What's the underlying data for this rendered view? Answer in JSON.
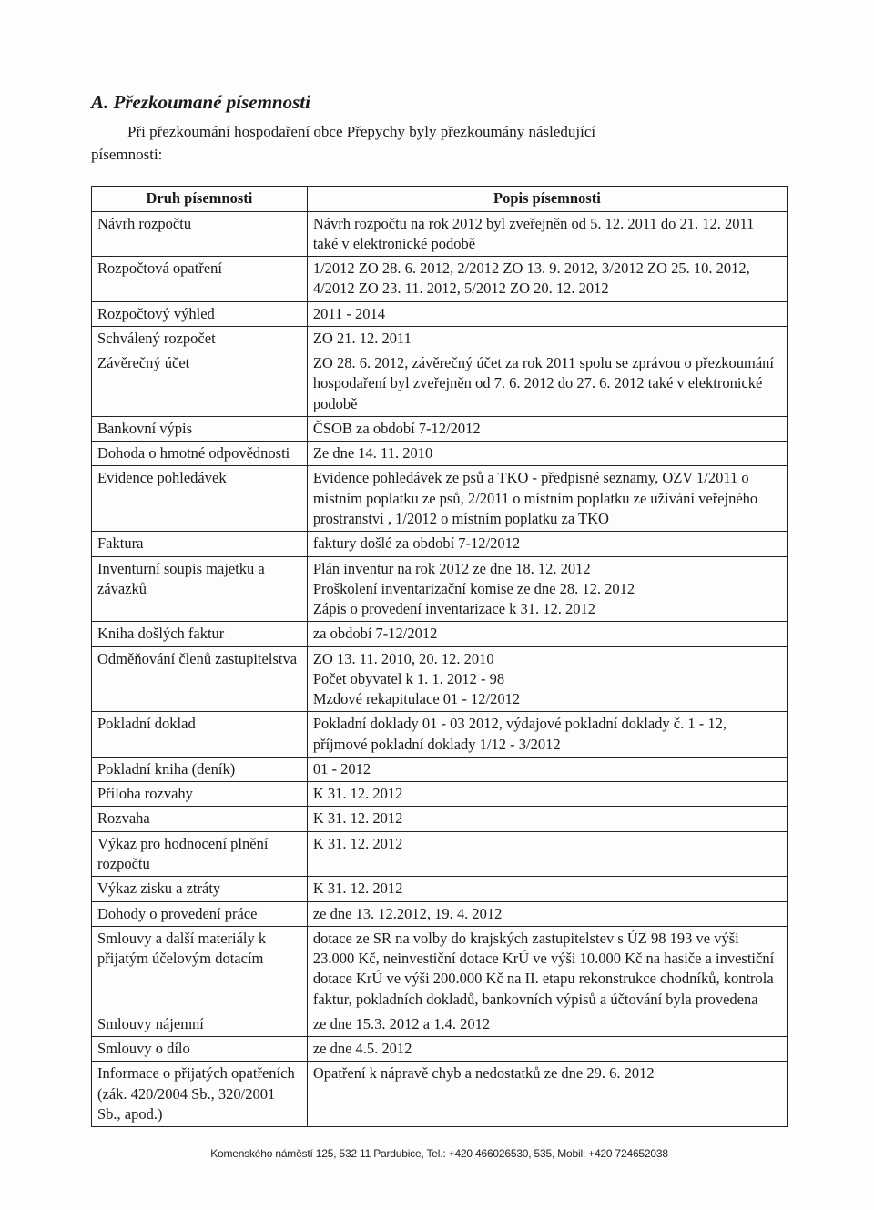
{
  "heading": "A. Přezkoumané písemnosti",
  "intro_line1": "Při přezkoumání hospodaření obce Přepychy byly přezkoumány následující",
  "intro_line2": "písemnosti:",
  "table": {
    "header_col1": "Druh písemnosti",
    "header_col2": "Popis písemnosti",
    "rows": [
      {
        "c1": "Návrh rozpočtu",
        "c2": "Návrh rozpočtu na rok 2012 byl zveřejněn od 5. 12. 2011 do 21. 12. 2011 také v elektronické podobě"
      },
      {
        "c1": "Rozpočtová opatření",
        "c2": "1/2012 ZO 28. 6. 2012, 2/2012 ZO 13. 9. 2012, 3/2012 ZO 25. 10. 2012, 4/2012 ZO 23. 11. 2012, 5/2012 ZO 20. 12. 2012"
      },
      {
        "c1": "Rozpočtový výhled",
        "c2": "2011 - 2014"
      },
      {
        "c1": "Schválený rozpočet",
        "c2": "ZO 21. 12. 2011"
      },
      {
        "c1": "Závěrečný účet",
        "c2": "ZO 28. 6. 2012, závěrečný účet za rok 2011 spolu se zprávou o přezkoumání hospodaření byl zveřejněn od 7. 6. 2012 do 27. 6. 2012 také v elektronické podobě"
      },
      {
        "c1": "Bankovní výpis",
        "c2": "ČSOB za období 7-12/2012"
      },
      {
        "c1": "Dohoda o hmotné odpovědnosti",
        "c2": "Ze dne 14. 11. 2010"
      },
      {
        "c1": "Evidence pohledávek",
        "c2": "Evidence pohledávek ze psů a TKO - předpisné seznamy, OZV 1/2011 o místním poplatku ze psů, 2/2011 o místním poplatku ze užívání veřejného prostranství , 1/2012 o místním poplatku za TKO"
      },
      {
        "c1": "Faktura",
        "c2": "faktury došlé za období 7-12/2012"
      },
      {
        "c1": "Inventurní soupis majetku a závazků",
        "c2": "Plán inventur na rok 2012 ze dne 18. 12. 2012\nProškolení inventarizační komise ze dne 28. 12. 2012\nZápis o provedení inventarizace k 31. 12. 2012"
      },
      {
        "c1": "Kniha došlých faktur",
        "c2": "za období 7-12/2012"
      },
      {
        "c1": "Odměňování členů zastupitelstva",
        "c2": "ZO 13. 11. 2010, 20. 12. 2010\nPočet obyvatel k 1. 1. 2012 - 98\nMzdové rekapitulace 01 - 12/2012"
      },
      {
        "c1": "Pokladní doklad",
        "c2": "Pokladní doklady 01 - 03 2012, výdajové pokladní doklady č. 1 - 12, příjmové pokladní doklady 1/12 - 3/2012"
      },
      {
        "c1": "Pokladní kniha (deník)",
        "c2": "01 - 2012"
      },
      {
        "c1": "Příloha rozvahy",
        "c2": "K 31. 12. 2012"
      },
      {
        "c1": "Rozvaha",
        "c2": "K 31. 12. 2012"
      },
      {
        "c1": "Výkaz pro hodnocení plnění rozpočtu",
        "c2": "K 31. 12. 2012"
      },
      {
        "c1": "Výkaz zisku a ztráty",
        "c2": "K 31. 12. 2012"
      },
      {
        "c1": "Dohody o provedení práce",
        "c2": "ze dne 13. 12.2012, 19. 4. 2012"
      },
      {
        "c1": "Smlouvy a další materiály k přijatým účelovým dotacím",
        "c2": "dotace ze SR na volby do krajských zastupitelstev s ÚZ 98 193 ve výši 23.000 Kč, neinvestiční dotace KrÚ ve výši 10.000 Kč na hasiče a investiční dotace KrÚ ve výši 200.000 Kč na II. etapu rekonstrukce chodníků, kontrola faktur, pokladních dokladů, bankovních výpisů a účtování byla provedena"
      },
      {
        "c1": "Smlouvy nájemní",
        "c2": "ze dne 15.3. 2012 a 1.4. 2012"
      },
      {
        "c1": "Smlouvy o dílo",
        "c2": "ze dne 4.5. 2012"
      },
      {
        "c1": "Informace o přijatých opatřeních (zák. 420/2004 Sb., 320/2001 Sb., apod.)",
        "c2": "Opatření k nápravě chyb a nedostatků ze dne 29. 6. 2012"
      }
    ]
  },
  "footer": "Komenského náměstí 125, 532 11 Pardubice, Tel.: +420 466026530, 535, Mobil: +420 724652038"
}
